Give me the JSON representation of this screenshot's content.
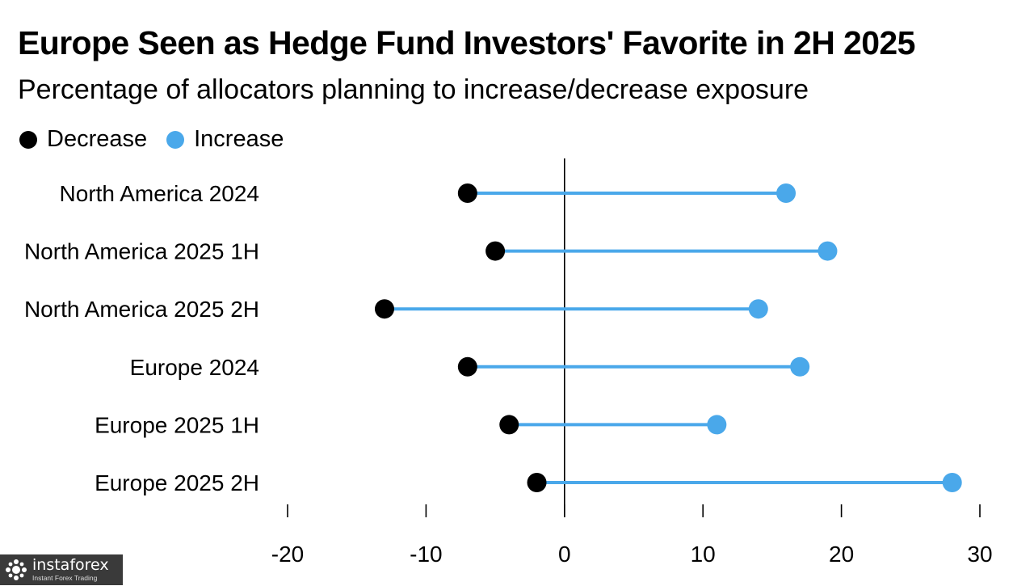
{
  "chart_data": {
    "type": "dumbbell",
    "title": "Europe Seen as Hedge Fund Investors' Favorite in 2H 2025",
    "subtitle": "Percentage of allocators planning to increase/decrease exposure",
    "legend": [
      {
        "name": "Decrease",
        "color": "#000000"
      },
      {
        "name": "Increase",
        "color": "#4aa8ea"
      }
    ],
    "legend_position": "top-left",
    "categories": [
      "North America 2024",
      "North America 2025 1H",
      "North America 2025 2H",
      "Europe 2024",
      "Europe 2025 1H",
      "Europe 2025 2H"
    ],
    "series": [
      {
        "name": "Decrease",
        "values": [
          -7,
          -5,
          -13,
          -7,
          -4,
          -2
        ]
      },
      {
        "name": "Increase",
        "values": [
          16,
          19,
          14,
          17,
          11,
          28
        ]
      }
    ],
    "xlim": [
      -20,
      30
    ],
    "xticks": [
      -20,
      -10,
      0,
      10,
      20,
      30
    ],
    "zero_line": true,
    "grid": false
  },
  "watermark": {
    "brand": "instaforex",
    "tagline": "Instant Forex Trading"
  }
}
